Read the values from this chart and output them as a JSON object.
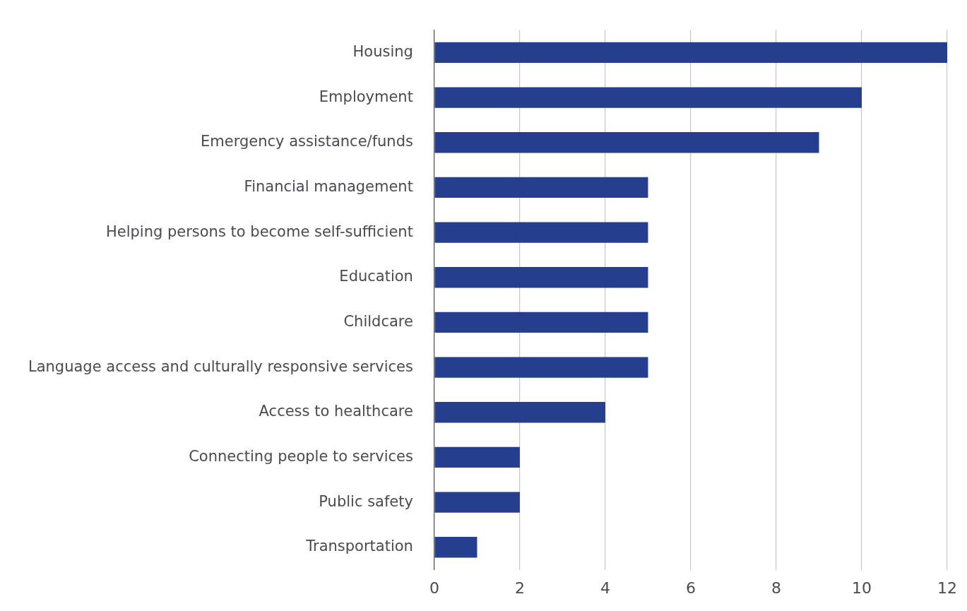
{
  "chart_data": {
    "type": "bar",
    "orientation": "horizontal",
    "categories": [
      "Housing",
      "Employment",
      "Emergency assistance/funds",
      "Financial management",
      "Helping persons to become self-sufficient",
      "Education",
      "Childcare",
      "Language access and culturally responsive services",
      "Access to healthcare",
      "Connecting people to services",
      "Public safety",
      "Transportation"
    ],
    "values": [
      12,
      10,
      9,
      5,
      5,
      5,
      5,
      5,
      4,
      2,
      2,
      1
    ],
    "color": "#253f8e",
    "xlim": [
      0,
      12
    ],
    "xticks": [
      0,
      2,
      4,
      6,
      8,
      10,
      12
    ],
    "grid": "x",
    "legend": false
  }
}
